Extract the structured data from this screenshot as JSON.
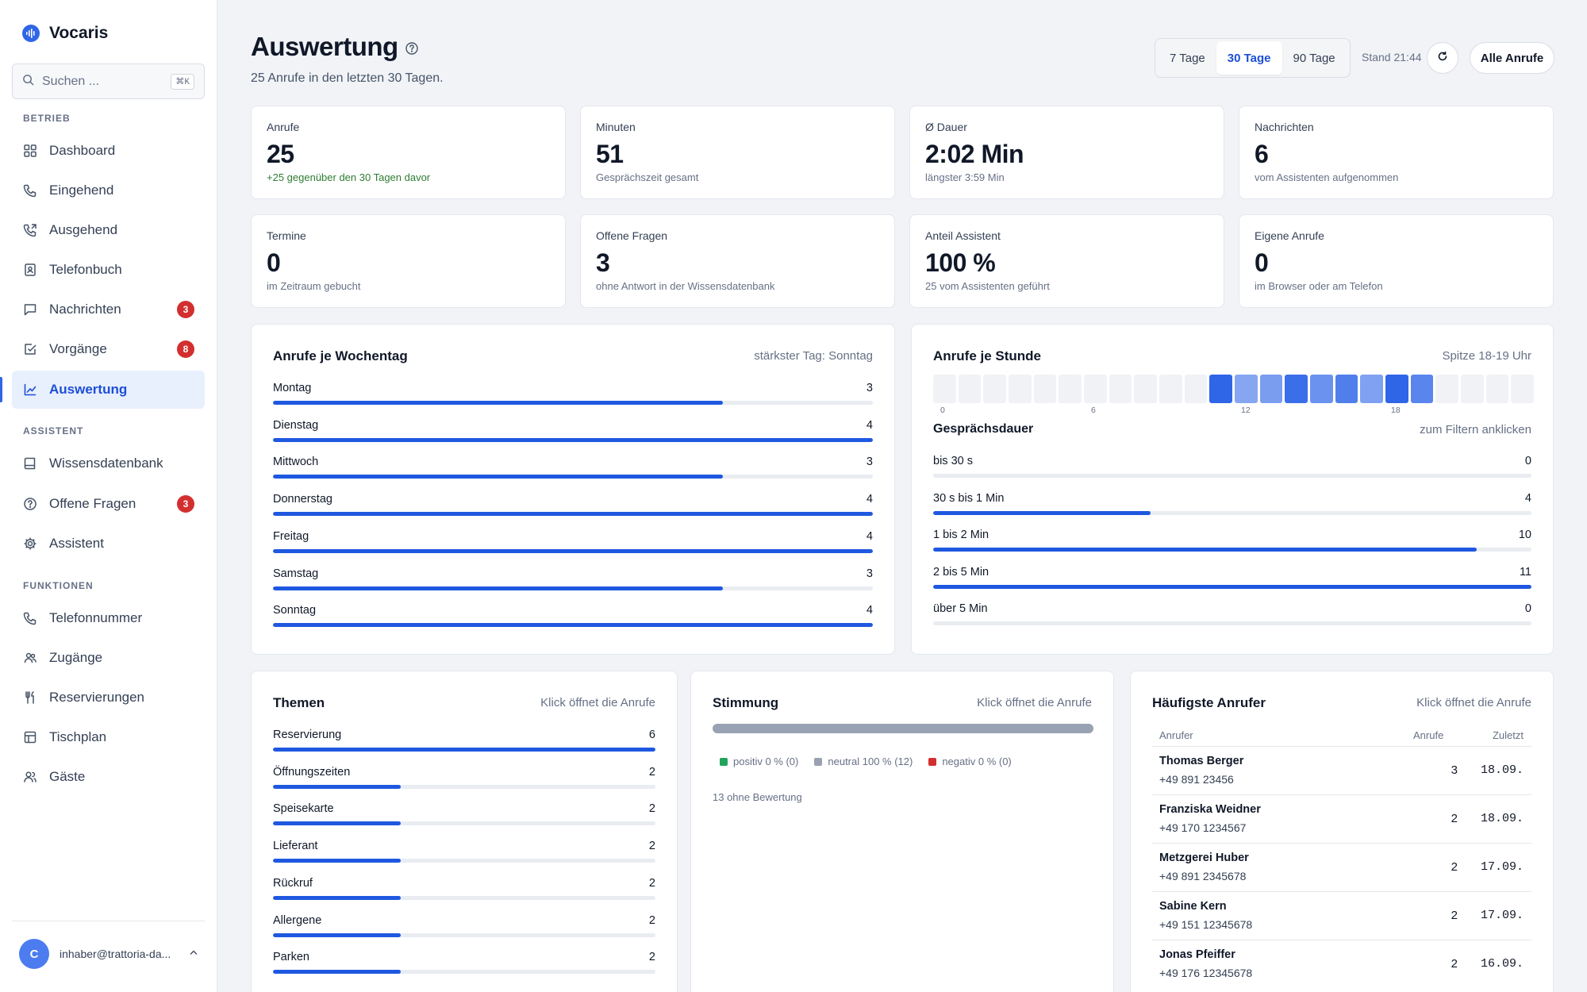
{
  "app": {
    "name": "Vocaris"
  },
  "sidebar": {
    "search": {
      "placeholder": "Suchen ...",
      "shortcut": "⌘K"
    },
    "sections": {
      "betrieb": "BETRIEB",
      "assistent": "ASSISTENT",
      "funktionen": "FUNKTIONEN"
    },
    "items": [
      {
        "label": "Dashboard",
        "icon": "grid-icon"
      },
      {
        "label": "Eingehend",
        "icon": "phone-incoming-icon"
      },
      {
        "label": "Ausgehend",
        "icon": "phone-outgoing-icon"
      },
      {
        "label": "Telefonbuch",
        "icon": "contact-book-icon"
      },
      {
        "label": "Nachrichten",
        "icon": "message-icon",
        "badge": "3"
      },
      {
        "label": "Vorgänge",
        "icon": "checkbox-icon",
        "badge": "8"
      },
      {
        "label": "Auswertung",
        "icon": "chart-icon",
        "active": true
      },
      {
        "label": "Wissensdatenbank",
        "icon": "book-icon"
      },
      {
        "label": "Offene Fragen",
        "icon": "question-icon",
        "badge": "3"
      },
      {
        "label": "Assistent",
        "icon": "gear-icon"
      },
      {
        "label": "Telefonnummer",
        "icon": "phone-icon"
      },
      {
        "label": "Zugänge",
        "icon": "users-icon"
      },
      {
        "label": "Reservierungen",
        "icon": "cutlery-icon"
      },
      {
        "label": "Tischplan",
        "icon": "table-icon"
      },
      {
        "label": "Gäste",
        "icon": "guests-icon"
      }
    ],
    "user": {
      "initial": "C",
      "email": "inhaber@trattoria-da..."
    }
  },
  "header": {
    "title": "Auswertung",
    "subtitle": "25 Anrufe in den letzten 30 Tagen.",
    "ranges": [
      "7 Tage",
      "30 Tage",
      "90 Tage"
    ],
    "selected_range": "30 Tage",
    "stand": "Stand 21:44",
    "all_calls_button": "Alle Anrufe"
  },
  "kpis": [
    {
      "label": "Anrufe",
      "value": "25",
      "sub": "+25 gegenüber den 30 Tagen davor",
      "positive": true
    },
    {
      "label": "Minuten",
      "value": "51",
      "sub": "Gesprächszeit gesamt"
    },
    {
      "label": "Ø Dauer",
      "value": "2:02 Min",
      "sub": "längster 3:59 Min"
    },
    {
      "label": "Nachrichten",
      "value": "6",
      "sub": "vom Assistenten aufgenommen"
    },
    {
      "label": "Termine",
      "value": "0",
      "sub": "im Zeitraum gebucht"
    },
    {
      "label": "Offene Fragen",
      "value": "3",
      "sub": "ohne Antwort in der Wissensdatenbank"
    },
    {
      "label": "Anteil Assistent",
      "value": "100 %",
      "sub": "25 vom Assistenten geführt"
    },
    {
      "label": "Eigene Anrufe",
      "value": "0",
      "sub": "im Browser oder am Telefon"
    }
  ],
  "weekday": {
    "title": "Anrufe je Wochentag",
    "hint": "stärkster Tag: Sonntag",
    "max": 4,
    "rows": [
      {
        "label": "Montag",
        "value": 3
      },
      {
        "label": "Dienstag",
        "value": 4
      },
      {
        "label": "Mittwoch",
        "value": 3
      },
      {
        "label": "Donnerstag",
        "value": 4
      },
      {
        "label": "Freitag",
        "value": 4
      },
      {
        "label": "Samstag",
        "value": 3
      },
      {
        "label": "Sonntag",
        "value": 4
      }
    ]
  },
  "hours": {
    "title": "Anrufe je Stunde",
    "hint": "Spitze 18-19 Uhr",
    "ticks": [
      "0",
      "6",
      "12",
      "18"
    ],
    "levels": [
      0,
      0,
      0,
      0,
      0,
      0,
      0,
      0,
      0,
      0,
      0,
      1,
      0.35,
      0.45,
      0.9,
      0.55,
      0.75,
      0.4,
      1,
      0.7,
      0,
      0,
      0,
      0
    ],
    "active_color": "#2f66e8",
    "empty_color": "#f0f2f5"
  },
  "duration": {
    "title": "Gesprächsdauer",
    "hint": "zum Filtern anklicken",
    "max": 11,
    "rows": [
      {
        "label": "bis 30 s",
        "value": 0
      },
      {
        "label": "30 s bis 1 Min",
        "value": 4
      },
      {
        "label": "1 bis 2 Min",
        "value": 10
      },
      {
        "label": "2 bis 5 Min",
        "value": 11
      },
      {
        "label": "über 5 Min",
        "value": 0
      }
    ]
  },
  "topics": {
    "title": "Themen",
    "hint": "Klick öffnet die Anrufe",
    "max": 6,
    "rows": [
      {
        "label": "Reservierung",
        "value": 6
      },
      {
        "label": "Öffnungszeiten",
        "value": 2
      },
      {
        "label": "Speisekarte",
        "value": 2
      },
      {
        "label": "Lieferant",
        "value": 2
      },
      {
        "label": "Rückruf",
        "value": 2
      },
      {
        "label": "Allergene",
        "value": 2
      },
      {
        "label": "Parken",
        "value": 2
      }
    ]
  },
  "mood": {
    "title": "Stimmung",
    "hint": "Klick öffnet die Anrufe",
    "legend": [
      {
        "label": "positiv 0 % (0)",
        "color": "#22a35a"
      },
      {
        "label": "neutral 100 % (12)",
        "color": "#98a2b3"
      },
      {
        "label": "negativ 0 % (0)",
        "color": "#d32f2f"
      }
    ],
    "note": "13 ohne Bewertung"
  },
  "callers": {
    "title": "Häufigste Anrufer",
    "hint": "Klick öffnet die Anrufe",
    "columns": [
      "Anrufer",
      "Anrufe",
      "Zuletzt"
    ],
    "rows": [
      {
        "name": "Thomas Berger",
        "phone": "+49 891 23456",
        "calls": "3",
        "last": "18.09."
      },
      {
        "name": "Franziska Weidner",
        "phone": "+49 170 1234567",
        "calls": "2",
        "last": "18.09."
      },
      {
        "name": "Metzgerei Huber",
        "phone": "+49 891 2345678",
        "calls": "2",
        "last": "17.09."
      },
      {
        "name": "Sabine Kern",
        "phone": "+49 151 12345678",
        "calls": "2",
        "last": "17.09."
      },
      {
        "name": "Jonas Pfeiffer",
        "phone": "+49 176 12345678",
        "calls": "2",
        "last": "16.09."
      }
    ]
  },
  "colors": {
    "accent": "#1f58e0",
    "badge": "#d32f2f",
    "positive": "#2e7d32"
  }
}
